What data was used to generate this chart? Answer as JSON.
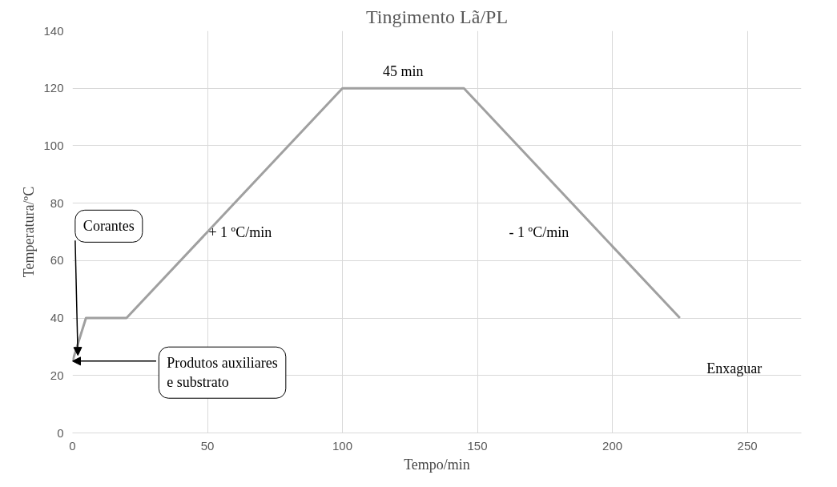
{
  "chart_data": {
    "type": "line",
    "title": "Tingimento Lã/PL",
    "xlabel": "Tempo/min",
    "ylabel": "Temperatura/ºC",
    "x": [
      0,
      5,
      20,
      100,
      145,
      225
    ],
    "series": [
      {
        "color": "#a0a0a0",
        "values": [
          25,
          40,
          40,
          120,
          120,
          40
        ]
      }
    ],
    "xlim": [
      0,
      270
    ],
    "xticks": [
      0,
      50,
      100,
      150,
      200,
      250
    ],
    "ylim": [
      0,
      140
    ],
    "yticks": [
      0,
      20,
      40,
      60,
      80,
      100,
      120,
      140
    ],
    "grid": true,
    "marker": "none",
    "line_style": "solid",
    "annotations": [
      {
        "text": "45 min",
        "x": 122.5,
        "y": 120
      },
      "+ 1 ºC/min",
      "- 1 ºC/min",
      {
        "text": "Corantes",
        "x": 2,
        "y": 27
      },
      {
        "text": "Produtos auxiliares\ne substrato",
        "x": 0,
        "y": 25
      },
      "Enxaguar"
    ]
  }
}
